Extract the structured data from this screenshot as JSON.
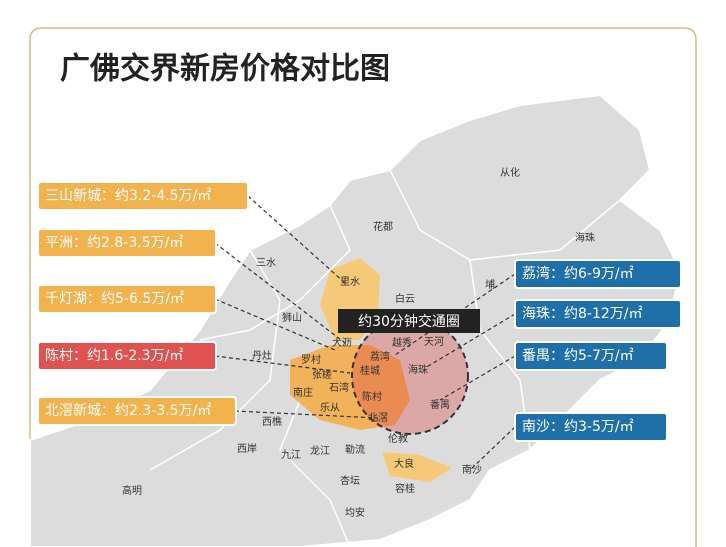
{
  "title": "广佛交界新房价格对比图",
  "map_labels": [
    "从化",
    "花都",
    "海珠",
    "三水",
    "里水",
    "白云",
    "埔",
    "狮山",
    "丹灶",
    "大沥",
    "荔湾",
    "越秀",
    "天河",
    "桂城",
    "罗村",
    "张槎",
    "石湾",
    "海珠",
    "南庄",
    "陈村",
    "番禺",
    "乐从",
    "北滘",
    "西樵",
    "伦教",
    "西岸",
    "九江",
    "龙江",
    "勒流",
    "大良",
    "南沙",
    "杏坛",
    "容桂",
    "高明",
    "均安"
  ],
  "circle_label": "约30分钟交通圈",
  "callouts_left": [
    "三山新城：约3.2-4.5万/㎡",
    "平洲：约2.8-3.5万/㎡",
    "千灯湖：约5-6.5万/㎡",
    "陈村：约1.6-2.3万/㎡",
    "北滘新城：约2.3-3.5万/㎡"
  ],
  "callouts_right": [
    "荔湾：约6-9万/㎡",
    "海珠：约8-12万/㎡",
    "番禺：约5-7万/㎡",
    "南沙：约3-5万/㎡"
  ]
}
